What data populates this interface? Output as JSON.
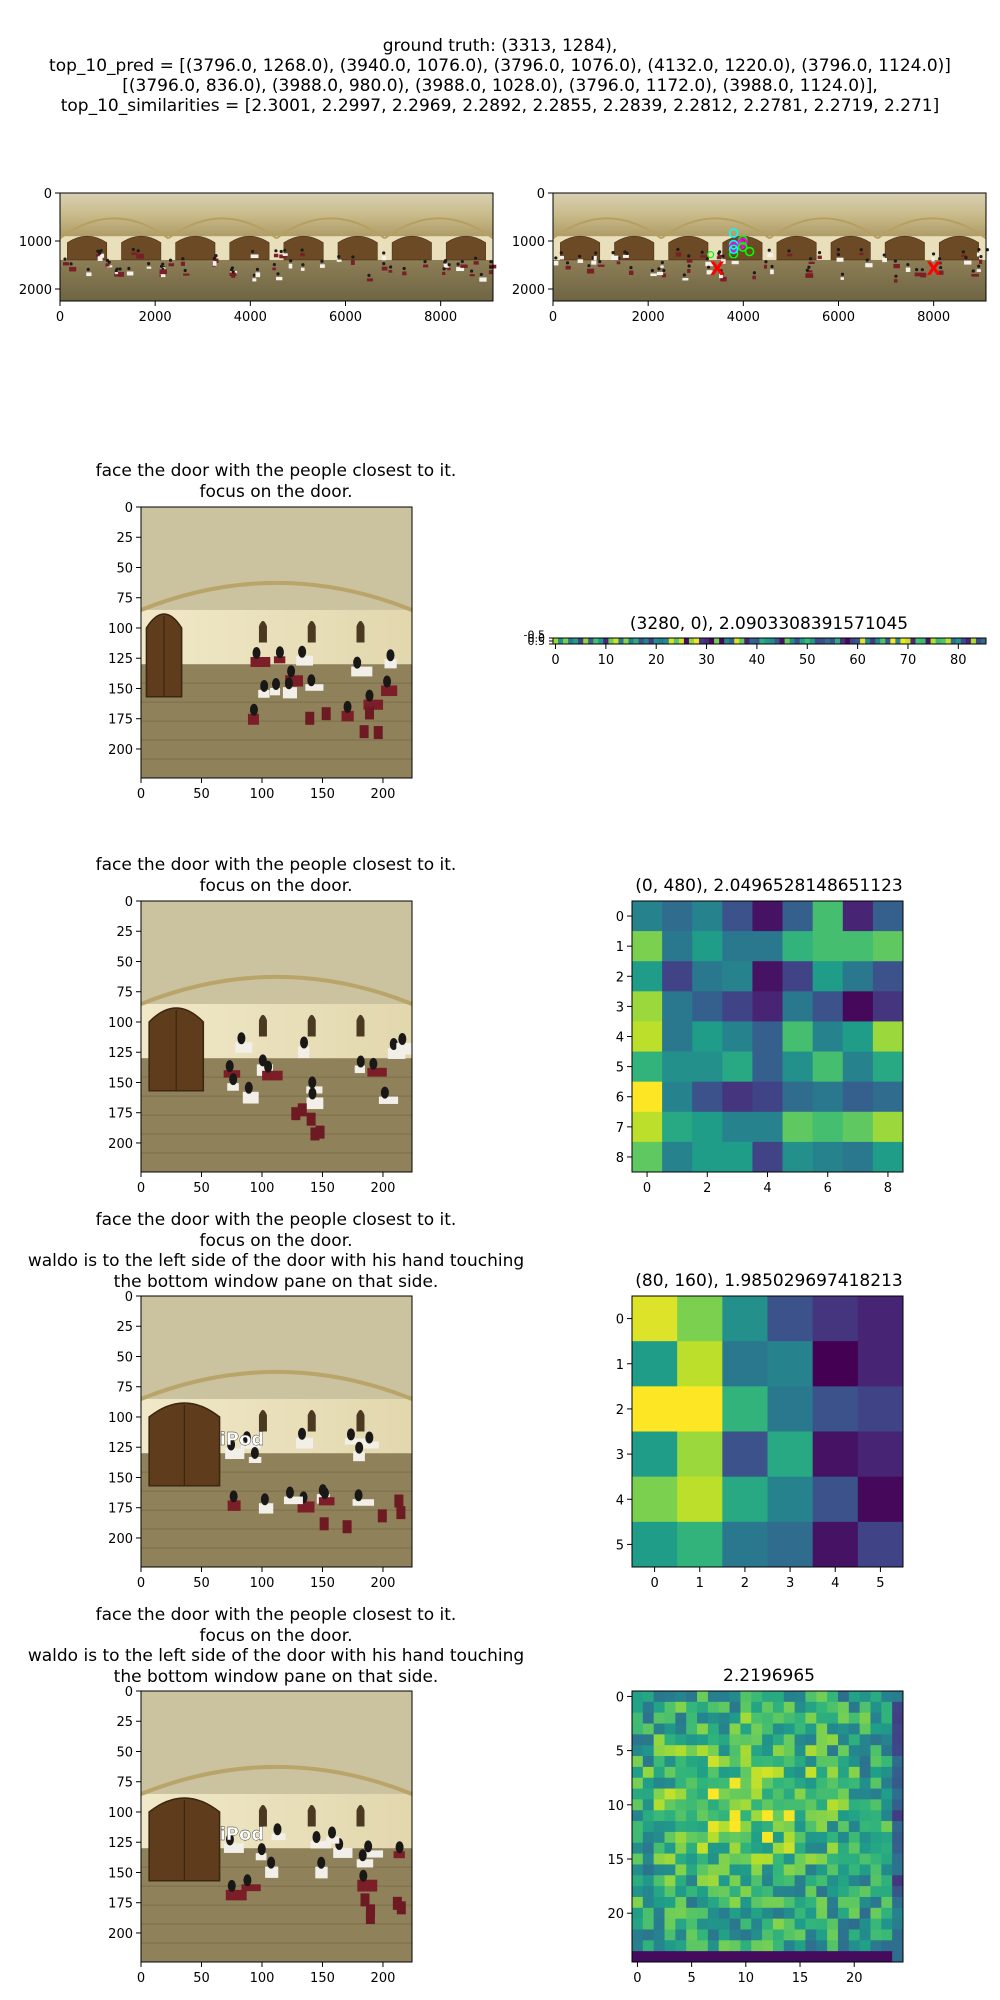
{
  "figure": {
    "suptitle_lines": [
      "ground truth: (3313, 1284),",
      "top_10_pred = [(3796.0, 1268.0), (3940.0, 1076.0), (3796.0, 1076.0), (4132.0, 1220.0), (3796.0, 1124.0)]",
      "[(3796.0, 836.0), (3988.0, 980.0), (3988.0, 1028.0), (3796.0, 1172.0), (3988.0, 1124.0)],",
      "top_10_similarities = [2.3001, 2.2997, 2.2969, 2.2892, 2.2855, 2.2839, 2.2812, 2.2781, 2.2719, 2.271]"
    ]
  },
  "panels": {
    "r0_left": {
      "title_lines": []
    },
    "r0_right": {
      "title_lines": [],
      "marker_labels": [
        "X",
        "X"
      ]
    },
    "r1_left": {
      "title_lines": [
        "face the door with the people closest to it.",
        "focus on the door."
      ]
    },
    "r1_right": {
      "title_lines": [
        "(3280, 0), 2.0903308391571045"
      ]
    },
    "r2_left": {
      "title_lines": [
        "face the door with the people closest to it.",
        "focus on the door."
      ]
    },
    "r2_right": {
      "title_lines": [
        "(0, 480), 2.0496528148651123"
      ]
    },
    "r3_left": {
      "title_lines": [
        "face the door with the people closest to it.",
        "focus on the door.",
        "waldo is to the left side of the door with his hand touching",
        "the bottom window pane on that side."
      ]
    },
    "r3_right": {
      "title_lines": [
        "(80, 160), 1.985029697418213"
      ]
    },
    "r4_left": {
      "title_lines": [
        "face the door with the people closest to it.",
        "focus on the door.",
        "waldo is to the left side of the door with his hand touching",
        "the bottom window pane on that side."
      ],
      "overlay_text": "iPod"
    },
    "r4_right": {
      "title_lines": [
        "2.2196965"
      ]
    }
  },
  "chart_data": [
    {
      "type": "image",
      "panel": "r0_left",
      "content": "equirectangular panorama of a banquet hall",
      "xlim": [
        0,
        9100
      ],
      "ylim": [
        2250,
        0
      ],
      "xticks": [
        "0",
        "2000",
        "4000",
        "6000",
        "8000"
      ],
      "yticks": [
        "0",
        "1000",
        "2000"
      ]
    },
    {
      "type": "scatter",
      "panel": "r0_right",
      "content": "same panorama with ground truth and top-10 prediction markers",
      "xlim": [
        0,
        9100
      ],
      "ylim": [
        2250,
        0
      ],
      "xticks": [
        "0",
        "2000",
        "4000",
        "6000",
        "8000"
      ],
      "yticks": [
        "0",
        "1000",
        "2000"
      ],
      "ground_truth": {
        "x": 3313,
        "y": 1284
      },
      "predictions": [
        {
          "x": 3796,
          "y": 1268
        },
        {
          "x": 3940,
          "y": 1076
        },
        {
          "x": 3796,
          "y": 1076
        },
        {
          "x": 4132,
          "y": 1220
        },
        {
          "x": 3796,
          "y": 1124
        },
        {
          "x": 3796,
          "y": 836
        },
        {
          "x": 3988,
          "y": 980
        },
        {
          "x": 3988,
          "y": 1028
        },
        {
          "x": 3796,
          "y": 1172
        },
        {
          "x": 3988,
          "y": 1124
        }
      ],
      "red_x_markers": [
        {
          "x": 3450,
          "y": 1560
        },
        {
          "x": 8000,
          "y": 1560
        }
      ],
      "colors": {
        "markers": "#ff0000",
        "pred_a": "#00ff00",
        "pred_b": "#ff00ff",
        "pred_c": "#00ffff"
      }
    },
    {
      "type": "image",
      "panel": "r1_left",
      "content": "perspective crop of banquet hall",
      "xlim": [
        0,
        224
      ],
      "ylim": [
        224,
        0
      ],
      "xticks": [
        "0",
        "50",
        "100",
        "150",
        "200"
      ],
      "yticks": [
        "0",
        "25",
        "50",
        "75",
        "100",
        "125",
        "150",
        "175",
        "200"
      ]
    },
    {
      "type": "heatmap",
      "panel": "r1_right",
      "rows": 1,
      "cols": 86,
      "xticks": [
        "0",
        "10",
        "20",
        "30",
        "40",
        "50",
        "60",
        "70",
        "80"
      ],
      "yticks": [
        "-0.5",
        "0.0",
        "0.5"
      ],
      "colormap": "viridis"
    },
    {
      "type": "image",
      "panel": "r2_left",
      "content": "perspective crop facing the door",
      "xlim": [
        0,
        224
      ],
      "ylim": [
        224,
        0
      ],
      "xticks": [
        "0",
        "50",
        "100",
        "150",
        "200"
      ],
      "yticks": [
        "0",
        "25",
        "50",
        "75",
        "100",
        "125",
        "150",
        "175",
        "200"
      ]
    },
    {
      "type": "heatmap",
      "panel": "r2_right",
      "rows": 9,
      "cols": 9,
      "xticks": [
        "0",
        "2",
        "4",
        "6",
        "8"
      ],
      "yticks": [
        "0",
        "1",
        "2",
        "3",
        "4",
        "5",
        "6",
        "7",
        "8"
      ],
      "colormap": "viridis",
      "values": [
        [
          0.45,
          0.35,
          0.45,
          0.25,
          0.05,
          0.3,
          0.7,
          0.1,
          0.3
        ],
        [
          0.8,
          0.4,
          0.55,
          0.4,
          0.4,
          0.65,
          0.7,
          0.7,
          0.75
        ],
        [
          0.55,
          0.2,
          0.4,
          0.45,
          0.05,
          0.2,
          0.55,
          0.4,
          0.25
        ],
        [
          0.85,
          0.4,
          0.3,
          0.2,
          0.1,
          0.4,
          0.25,
          0.02,
          0.15
        ],
        [
          0.9,
          0.4,
          0.55,
          0.45,
          0.3,
          0.7,
          0.45,
          0.55,
          0.85
        ],
        [
          0.65,
          0.5,
          0.5,
          0.6,
          0.3,
          0.5,
          0.7,
          0.45,
          0.6
        ],
        [
          1.0,
          0.45,
          0.25,
          0.15,
          0.2,
          0.35,
          0.4,
          0.3,
          0.35
        ],
        [
          0.9,
          0.6,
          0.55,
          0.45,
          0.45,
          0.75,
          0.7,
          0.75,
          0.85
        ],
        [
          0.75,
          0.45,
          0.55,
          0.55,
          0.2,
          0.5,
          0.45,
          0.4,
          0.55
        ]
      ]
    },
    {
      "type": "image",
      "panel": "r3_left",
      "content": "zoomed perspective crop of the door",
      "xlim": [
        0,
        224
      ],
      "ylim": [
        224,
        0
      ],
      "xticks": [
        "0",
        "50",
        "100",
        "150",
        "200"
      ],
      "yticks": [
        "0",
        "25",
        "50",
        "75",
        "100",
        "125",
        "150",
        "175",
        "200"
      ]
    },
    {
      "type": "heatmap",
      "panel": "r3_right",
      "rows": 6,
      "cols": 6,
      "xticks": [
        "0",
        "1",
        "2",
        "3",
        "4",
        "5"
      ],
      "yticks": [
        "0",
        "1",
        "2",
        "3",
        "4",
        "5"
      ],
      "colormap": "viridis",
      "values": [
        [
          0.95,
          0.8,
          0.5,
          0.25,
          0.15,
          0.1
        ],
        [
          0.55,
          0.9,
          0.4,
          0.45,
          0.0,
          0.1
        ],
        [
          1.0,
          1.0,
          0.65,
          0.4,
          0.25,
          0.2
        ],
        [
          0.55,
          0.85,
          0.25,
          0.6,
          0.05,
          0.1
        ],
        [
          0.8,
          0.9,
          0.6,
          0.45,
          0.25,
          0.02
        ],
        [
          0.55,
          0.65,
          0.4,
          0.35,
          0.05,
          0.2
        ]
      ]
    },
    {
      "type": "image",
      "panel": "r4_left",
      "content": "zoomed perspective crop of the door with overlay text",
      "xlim": [
        0,
        224
      ],
      "ylim": [
        224,
        0
      ],
      "xticks": [
        "0",
        "50",
        "100",
        "150",
        "200"
      ],
      "yticks": [
        "0",
        "25",
        "50",
        "75",
        "100",
        "125",
        "150",
        "175",
        "200"
      ]
    },
    {
      "type": "heatmap",
      "panel": "r4_right",
      "rows": 25,
      "cols": 25,
      "xticks": [
        "0",
        "5",
        "10",
        "15",
        "20"
      ],
      "yticks": [
        "0",
        "5",
        "10",
        "15",
        "20"
      ],
      "colormap": "viridis"
    }
  ]
}
